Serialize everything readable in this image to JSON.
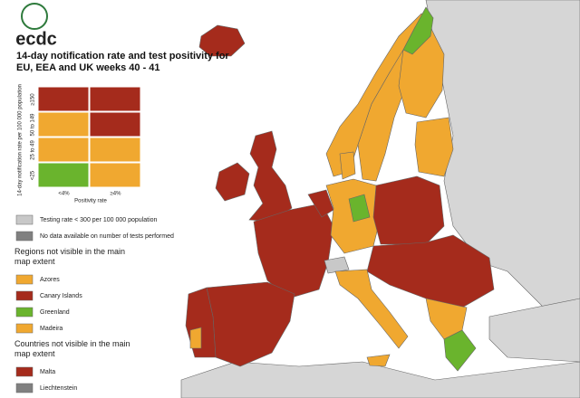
{
  "header": {
    "logo": "ecdc",
    "title": "14-day notification rate and test positivity for EU, EEA and UK weeks 40 - 41"
  },
  "matrix": {
    "y_title": "14-day notification rate per 100 000 population",
    "x_title": "Positivity rate",
    "columns": [
      "<4%",
      "≥4%"
    ],
    "rows": [
      {
        "label": "≥150",
        "cells": [
          "#a52b1c",
          "#a52b1c"
        ]
      },
      {
        "label": "50 to 149",
        "cells": [
          "#f0a830",
          "#a52b1c"
        ]
      },
      {
        "label": "25 to 49",
        "cells": [
          "#f0a830",
          "#f0a830"
        ]
      },
      {
        "label": "<25",
        "cells": [
          "#6ab42d",
          "#f0a830"
        ]
      }
    ]
  },
  "legend": {
    "general": [
      {
        "label": "Testing rate < 300 per 100 000 population",
        "color": "#c8c8c8"
      },
      {
        "label": "No data available on number of tests performed",
        "color": "#808080"
      }
    ],
    "regions_heading": "Regions not visible in the main map extent",
    "regions": [
      {
        "label": "Azores",
        "color": "#f0a830"
      },
      {
        "label": "Canary Islands",
        "color": "#a52b1c"
      },
      {
        "label": "Greenland",
        "color": "#6ab42d"
      },
      {
        "label": "Madeira",
        "color": "#f0a830"
      }
    ],
    "countries_heading": "Countries not visible in the main map extent",
    "countries": [
      {
        "label": "Malta",
        "color": "#a52b1c"
      },
      {
        "label": "Liechtenstein",
        "color": "#808080"
      }
    ]
  }
}
